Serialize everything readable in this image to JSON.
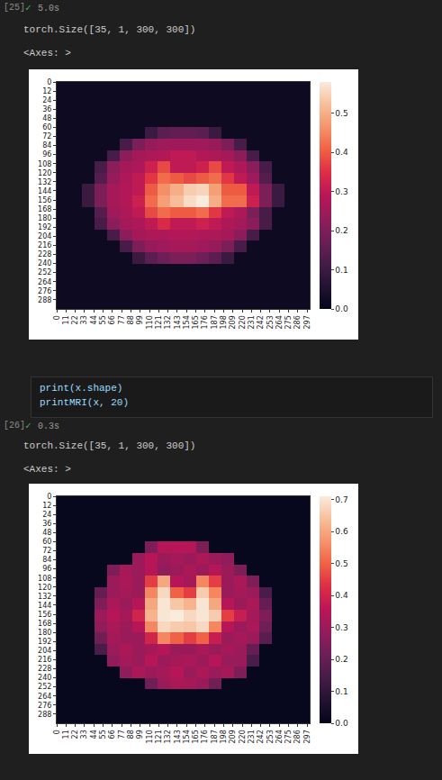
{
  "notebook": {
    "cells": [
      {
        "execution_count": "[25]",
        "status": "✓",
        "time": "5.0s",
        "outputs": [
          "torch.Size([35, 1, 300, 300])",
          "<Axes: >"
        ]
      },
      {
        "execution_count": "[26]",
        "code": [
          "print(x.shape)",
          "printMRI(x, 20)"
        ],
        "status": "✓",
        "time": "0.3s",
        "outputs": [
          "torch.Size([35, 1, 300, 300])",
          "<Axes: >"
        ]
      }
    ]
  },
  "chart_data": [
    {
      "type": "heatmap",
      "x_edges": [
        0,
        15,
        30,
        45,
        60,
        75,
        90,
        105,
        120,
        135,
        150,
        165,
        180,
        195,
        210,
        225,
        240,
        255,
        270,
        285,
        300
      ],
      "y_edges": [
        0,
        15,
        30,
        45,
        60,
        75,
        90,
        105,
        120,
        135,
        150,
        165,
        180,
        195,
        210,
        225,
        240,
        255,
        270,
        285,
        300
      ],
      "xlim": [
        0,
        300
      ],
      "ylim": [
        300,
        0
      ],
      "xticks": [
        0,
        11,
        22,
        33,
        44,
        55,
        66,
        77,
        88,
        99,
        110,
        121,
        132,
        143,
        154,
        165,
        176,
        187,
        198,
        209,
        220,
        231,
        242,
        253,
        264,
        275,
        286,
        297
      ],
      "yticks": [
        0,
        12,
        24,
        36,
        48,
        60,
        72,
        84,
        96,
        108,
        120,
        132,
        144,
        156,
        168,
        180,
        192,
        204,
        216,
        228,
        240,
        252,
        264,
        276,
        288
      ],
      "colorbar_range": [
        0,
        0.58
      ],
      "colorbar_ticks": [
        {
          "value": 0,
          "label": "0.0"
        },
        0.1,
        0.2,
        0.3,
        0.4,
        0.5
      ],
      "cells": [
        [
          0.02,
          0.02,
          0.02,
          0.02,
          0.02,
          0.02,
          0.02,
          0.02,
          0.02,
          0.02,
          0.02,
          0.02,
          0.02,
          0.02,
          0.02,
          0.02,
          0.02,
          0.02,
          0.02,
          0.02
        ],
        [
          0.02,
          0.02,
          0.02,
          0.02,
          0.02,
          0.02,
          0.02,
          0.02,
          0.02,
          0.02,
          0.02,
          0.02,
          0.02,
          0.02,
          0.02,
          0.02,
          0.02,
          0.02,
          0.02,
          0.02
        ],
        [
          0.02,
          0.02,
          0.02,
          0.02,
          0.02,
          0.02,
          0.02,
          0.02,
          0.02,
          0.02,
          0.02,
          0.02,
          0.02,
          0.02,
          0.02,
          0.02,
          0.02,
          0.02,
          0.02,
          0.02
        ],
        [
          0.02,
          0.02,
          0.02,
          0.02,
          0.02,
          0.02,
          0.02,
          0.02,
          0.02,
          0.02,
          0.02,
          0.02,
          0.02,
          0.02,
          0.02,
          0.02,
          0.02,
          0.02,
          0.02,
          0.02
        ],
        [
          0.02,
          0.02,
          0.02,
          0.02,
          0.02,
          0.02,
          0.02,
          0.1,
          0.15,
          0.16,
          0.16,
          0.15,
          0.1,
          0.02,
          0.02,
          0.02,
          0.02,
          0.02,
          0.02,
          0.02
        ],
        [
          0.02,
          0.02,
          0.02,
          0.02,
          0.02,
          0.12,
          0.2,
          0.24,
          0.25,
          0.25,
          0.25,
          0.25,
          0.24,
          0.2,
          0.12,
          0.02,
          0.02,
          0.02,
          0.02,
          0.02
        ],
        [
          0.02,
          0.02,
          0.02,
          0.02,
          0.12,
          0.22,
          0.26,
          0.27,
          0.28,
          0.3,
          0.3,
          0.28,
          0.27,
          0.26,
          0.22,
          0.12,
          0.02,
          0.02,
          0.02,
          0.02
        ],
        [
          0.02,
          0.02,
          0.02,
          0.12,
          0.22,
          0.26,
          0.27,
          0.32,
          0.38,
          0.3,
          0.3,
          0.32,
          0.38,
          0.3,
          0.27,
          0.22,
          0.12,
          0.02,
          0.02,
          0.02
        ],
        [
          0.02,
          0.02,
          0.02,
          0.14,
          0.24,
          0.27,
          0.3,
          0.36,
          0.42,
          0.4,
          0.38,
          0.4,
          0.42,
          0.36,
          0.3,
          0.25,
          0.14,
          0.02,
          0.02,
          0.02
        ],
        [
          0.02,
          0.02,
          0.1,
          0.2,
          0.26,
          0.28,
          0.3,
          0.4,
          0.46,
          0.5,
          0.54,
          0.55,
          0.48,
          0.4,
          0.4,
          0.3,
          0.2,
          0.1,
          0.02,
          0.02
        ],
        [
          0.02,
          0.02,
          0.1,
          0.2,
          0.26,
          0.28,
          0.32,
          0.42,
          0.48,
          0.52,
          0.56,
          0.58,
          0.5,
          0.42,
          0.42,
          0.32,
          0.2,
          0.1,
          0.02,
          0.02
        ],
        [
          0.02,
          0.02,
          0.02,
          0.14,
          0.25,
          0.27,
          0.3,
          0.38,
          0.42,
          0.4,
          0.4,
          0.42,
          0.36,
          0.3,
          0.27,
          0.2,
          0.12,
          0.02,
          0.02,
          0.02
        ],
        [
          0.02,
          0.02,
          0.02,
          0.12,
          0.22,
          0.26,
          0.27,
          0.3,
          0.34,
          0.3,
          0.3,
          0.32,
          0.3,
          0.27,
          0.26,
          0.22,
          0.12,
          0.02,
          0.02,
          0.02
        ],
        [
          0.02,
          0.02,
          0.02,
          0.02,
          0.12,
          0.22,
          0.26,
          0.27,
          0.27,
          0.28,
          0.28,
          0.27,
          0.27,
          0.26,
          0.22,
          0.12,
          0.02,
          0.02,
          0.02,
          0.02
        ],
        [
          0.02,
          0.02,
          0.02,
          0.02,
          0.02,
          0.12,
          0.2,
          0.24,
          0.25,
          0.26,
          0.26,
          0.25,
          0.24,
          0.2,
          0.12,
          0.02,
          0.02,
          0.02,
          0.02,
          0.02
        ],
        [
          0.02,
          0.02,
          0.02,
          0.02,
          0.02,
          0.02,
          0.1,
          0.15,
          0.18,
          0.2,
          0.2,
          0.18,
          0.15,
          0.1,
          0.02,
          0.02,
          0.02,
          0.02,
          0.02,
          0.02
        ],
        [
          0.02,
          0.02,
          0.02,
          0.02,
          0.02,
          0.02,
          0.02,
          0.02,
          0.02,
          0.02,
          0.02,
          0.02,
          0.02,
          0.02,
          0.02,
          0.02,
          0.02,
          0.02,
          0.02,
          0.02
        ],
        [
          0.02,
          0.02,
          0.02,
          0.02,
          0.02,
          0.02,
          0.02,
          0.02,
          0.02,
          0.02,
          0.02,
          0.02,
          0.02,
          0.02,
          0.02,
          0.02,
          0.02,
          0.02,
          0.02,
          0.02
        ],
        [
          0.02,
          0.02,
          0.02,
          0.02,
          0.02,
          0.02,
          0.02,
          0.02,
          0.02,
          0.02,
          0.02,
          0.02,
          0.02,
          0.02,
          0.02,
          0.02,
          0.02,
          0.02,
          0.02,
          0.02
        ],
        [
          0.02,
          0.02,
          0.02,
          0.02,
          0.02,
          0.02,
          0.02,
          0.02,
          0.02,
          0.02,
          0.02,
          0.02,
          0.02,
          0.02,
          0.02,
          0.02,
          0.02,
          0.02,
          0.02,
          0.02
        ]
      ]
    },
    {
      "type": "heatmap",
      "x_edges": [
        0,
        15,
        30,
        45,
        60,
        75,
        90,
        105,
        120,
        135,
        150,
        165,
        180,
        195,
        210,
        225,
        240,
        255,
        270,
        285,
        300
      ],
      "y_edges": [
        0,
        15,
        30,
        45,
        60,
        75,
        90,
        105,
        120,
        135,
        150,
        165,
        180,
        195,
        210,
        225,
        240,
        255,
        270,
        285,
        300
      ],
      "xlim": [
        0,
        300
      ],
      "ylim": [
        300,
        0
      ],
      "xticks": [
        0,
        11,
        22,
        33,
        44,
        55,
        66,
        77,
        88,
        99,
        110,
        121,
        132,
        143,
        154,
        165,
        176,
        187,
        198,
        209,
        220,
        231,
        242,
        253,
        264,
        275,
        286,
        297
      ],
      "yticks": [
        0,
        12,
        24,
        36,
        48,
        60,
        72,
        84,
        96,
        108,
        120,
        132,
        144,
        156,
        168,
        180,
        192,
        204,
        216,
        228,
        240,
        252,
        264,
        276,
        288
      ],
      "colorbar_range": [
        0,
        0.71
      ],
      "colorbar_ticks": [
        {
          "value": 0,
          "label": "0.0"
        },
        0.1,
        0.2,
        0.3,
        0.4,
        0.5,
        0.6,
        0.7
      ],
      "cells": [
        [
          0.01,
          0.01,
          0.01,
          0.01,
          0.01,
          0.01,
          0.01,
          0.01,
          0.01,
          0.01,
          0.01,
          0.01,
          0.01,
          0.01,
          0.01,
          0.01,
          0.01,
          0.01,
          0.01,
          0.01
        ],
        [
          0.01,
          0.01,
          0.01,
          0.01,
          0.01,
          0.01,
          0.01,
          0.01,
          0.01,
          0.01,
          0.01,
          0.01,
          0.01,
          0.01,
          0.01,
          0.01,
          0.01,
          0.01,
          0.01,
          0.01
        ],
        [
          0.01,
          0.01,
          0.01,
          0.01,
          0.01,
          0.01,
          0.01,
          0.01,
          0.01,
          0.01,
          0.01,
          0.01,
          0.01,
          0.01,
          0.01,
          0.01,
          0.01,
          0.01,
          0.01,
          0.01
        ],
        [
          0.01,
          0.01,
          0.01,
          0.01,
          0.01,
          0.01,
          0.01,
          0.01,
          0.01,
          0.01,
          0.01,
          0.01,
          0.01,
          0.01,
          0.01,
          0.01,
          0.01,
          0.01,
          0.01,
          0.01
        ],
        [
          0.01,
          0.01,
          0.01,
          0.01,
          0.01,
          0.01,
          0.01,
          0.25,
          0.35,
          0.35,
          0.35,
          0.25,
          0.01,
          0.01,
          0.01,
          0.01,
          0.01,
          0.01,
          0.01,
          0.01
        ],
        [
          0.01,
          0.01,
          0.01,
          0.01,
          0.01,
          0.01,
          0.3,
          0.35,
          0.3,
          0.32,
          0.3,
          0.33,
          0.3,
          0.28,
          0.01,
          0.01,
          0.01,
          0.01,
          0.01,
          0.01
        ],
        [
          0.01,
          0.01,
          0.01,
          0.01,
          0.25,
          0.32,
          0.3,
          0.35,
          0.28,
          0.3,
          0.33,
          0.3,
          0.35,
          0.3,
          0.25,
          0.01,
          0.01,
          0.01,
          0.01,
          0.01
        ],
        [
          0.01,
          0.01,
          0.01,
          0.01,
          0.3,
          0.33,
          0.3,
          0.45,
          0.6,
          0.35,
          0.32,
          0.55,
          0.45,
          0.3,
          0.33,
          0.25,
          0.01,
          0.01,
          0.01,
          0.01
        ],
        [
          0.01,
          0.01,
          0.01,
          0.2,
          0.3,
          0.32,
          0.3,
          0.55,
          0.68,
          0.5,
          0.45,
          0.66,
          0.55,
          0.3,
          0.32,
          0.3,
          0.15,
          0.01,
          0.01,
          0.01
        ],
        [
          0.01,
          0.01,
          0.01,
          0.25,
          0.33,
          0.3,
          0.35,
          0.6,
          0.7,
          0.65,
          0.62,
          0.7,
          0.6,
          0.35,
          0.3,
          0.33,
          0.2,
          0.01,
          0.01,
          0.01
        ],
        [
          0.01,
          0.01,
          0.01,
          0.3,
          0.35,
          0.32,
          0.4,
          0.62,
          0.7,
          0.71,
          0.68,
          0.7,
          0.66,
          0.45,
          0.38,
          0.32,
          0.25,
          0.01,
          0.01,
          0.01
        ],
        [
          0.01,
          0.01,
          0.01,
          0.28,
          0.33,
          0.3,
          0.35,
          0.55,
          0.68,
          0.66,
          0.65,
          0.68,
          0.55,
          0.35,
          0.3,
          0.33,
          0.22,
          0.01,
          0.01,
          0.01
        ],
        [
          0.01,
          0.01,
          0.01,
          0.22,
          0.32,
          0.3,
          0.3,
          0.4,
          0.55,
          0.5,
          0.45,
          0.5,
          0.38,
          0.3,
          0.32,
          0.3,
          0.18,
          0.01,
          0.01,
          0.01
        ],
        [
          0.01,
          0.01,
          0.01,
          0.15,
          0.3,
          0.33,
          0.3,
          0.32,
          0.35,
          0.3,
          0.3,
          0.33,
          0.3,
          0.32,
          0.3,
          0.2,
          0.01,
          0.01,
          0.01,
          0.01
        ],
        [
          0.01,
          0.01,
          0.01,
          0.01,
          0.28,
          0.32,
          0.3,
          0.35,
          0.3,
          0.32,
          0.33,
          0.3,
          0.35,
          0.3,
          0.3,
          0.15,
          0.01,
          0.01,
          0.01,
          0.01
        ],
        [
          0.01,
          0.01,
          0.01,
          0.01,
          0.01,
          0.28,
          0.33,
          0.3,
          0.32,
          0.35,
          0.3,
          0.33,
          0.3,
          0.32,
          0.25,
          0.01,
          0.01,
          0.01,
          0.01,
          0.01
        ],
        [
          0.01,
          0.01,
          0.01,
          0.01,
          0.01,
          0.01,
          0.01,
          0.22,
          0.3,
          0.33,
          0.32,
          0.3,
          0.22,
          0.01,
          0.01,
          0.01,
          0.01,
          0.01,
          0.01,
          0.01
        ],
        [
          0.01,
          0.01,
          0.01,
          0.01,
          0.01,
          0.01,
          0.01,
          0.01,
          0.01,
          0.01,
          0.01,
          0.01,
          0.01,
          0.01,
          0.01,
          0.01,
          0.01,
          0.01,
          0.01,
          0.01
        ],
        [
          0.01,
          0.01,
          0.01,
          0.01,
          0.01,
          0.01,
          0.01,
          0.01,
          0.01,
          0.01,
          0.01,
          0.01,
          0.01,
          0.01,
          0.01,
          0.01,
          0.01,
          0.01,
          0.01,
          0.01
        ],
        [
          0.01,
          0.01,
          0.01,
          0.01,
          0.01,
          0.01,
          0.01,
          0.01,
          0.01,
          0.01,
          0.01,
          0.01,
          0.01,
          0.01,
          0.01,
          0.01,
          0.01,
          0.01,
          0.01,
          0.01
        ]
      ]
    }
  ]
}
